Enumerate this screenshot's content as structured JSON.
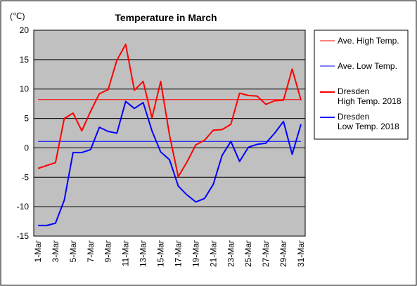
{
  "chart_data": {
    "type": "line",
    "title": "Temperature in March",
    "unit_label": "(℃)",
    "ylim": [
      -15,
      20
    ],
    "yticks": [
      -15,
      -10,
      -5,
      0,
      5,
      10,
      15,
      20
    ],
    "x": [
      "1-Mar",
      "2-Mar",
      "3-Mar",
      "4-Mar",
      "5-Mar",
      "6-Mar",
      "7-Mar",
      "8-Mar",
      "9-Mar",
      "10-Mar",
      "11-Mar",
      "12-Mar",
      "13-Mar",
      "14-Mar",
      "15-Mar",
      "16-Mar",
      "17-Mar",
      "18-Mar",
      "19-Mar",
      "20-Mar",
      "21-Mar",
      "22-Mar",
      "23-Mar",
      "24-Mar",
      "25-Mar",
      "26-Mar",
      "27-Mar",
      "28-Mar",
      "29-Mar",
      "30-Mar",
      "31-Mar"
    ],
    "x_tick_labels": [
      "1-Mar",
      "3-Mar",
      "5-Mar",
      "7-Mar",
      "9-Mar",
      "11-Mar",
      "13-Mar",
      "15-Mar",
      "17-Mar",
      "19-Mar",
      "21-Mar",
      "23-Mar",
      "25-Mar",
      "27-Mar",
      "29-Mar",
      "31-Mar"
    ],
    "grid": true,
    "legend_position": "right",
    "series": [
      {
        "name": "Ave. High Temp.",
        "color": "#ff0000",
        "style": "thin",
        "values": [
          8.2,
          8.2,
          8.2,
          8.2,
          8.2,
          8.2,
          8.2,
          8.2,
          8.2,
          8.2,
          8.2,
          8.2,
          8.2,
          8.2,
          8.2,
          8.2,
          8.2,
          8.2,
          8.2,
          8.2,
          8.2,
          8.2,
          8.2,
          8.2,
          8.2,
          8.2,
          8.2,
          8.2,
          8.2,
          8.2,
          8.2
        ]
      },
      {
        "name": "Ave. Low Temp.",
        "color": "#0000ff",
        "style": "thin",
        "values": [
          1.1,
          1.1,
          1.1,
          1.1,
          1.1,
          1.1,
          1.1,
          1.1,
          1.1,
          1.1,
          1.1,
          1.1,
          1.1,
          1.1,
          1.1,
          1.1,
          1.1,
          1.1,
          1.1,
          1.1,
          1.1,
          1.1,
          1.1,
          1.1,
          1.1,
          1.1,
          1.1,
          1.1,
          1.1,
          1.1,
          1.1
        ]
      },
      {
        "name": "Dresden\nHigh Temp. 2018",
        "color": "#ff0000",
        "style": "thick",
        "values": [
          -3.5,
          -3.0,
          -2.5,
          5.0,
          5.9,
          2.9,
          6.2,
          9.2,
          9.9,
          14.9,
          17.6,
          9.8,
          11.3,
          5.1,
          11.3,
          2.2,
          -4.9,
          -2.4,
          0.5,
          1.3,
          3.0,
          3.1,
          4.0,
          9.3,
          8.9,
          8.8,
          7.4,
          8.0,
          8.1,
          13.4,
          8.1
        ]
      },
      {
        "name": "Dresden\nLow Temp. 2018",
        "color": "#0000ff",
        "style": "thick",
        "values": [
          -13.2,
          -13.2,
          -12.8,
          -8.9,
          -0.8,
          -0.8,
          -0.3,
          3.5,
          2.8,
          2.5,
          7.9,
          6.7,
          7.7,
          2.9,
          -0.7,
          -2.0,
          -6.5,
          -8.0,
          -9.2,
          -8.6,
          -6.2,
          -1.3,
          1.1,
          -2.3,
          0.1,
          0.6,
          0.8,
          2.5,
          4.5,
          -1.1,
          4.0
        ]
      }
    ]
  }
}
